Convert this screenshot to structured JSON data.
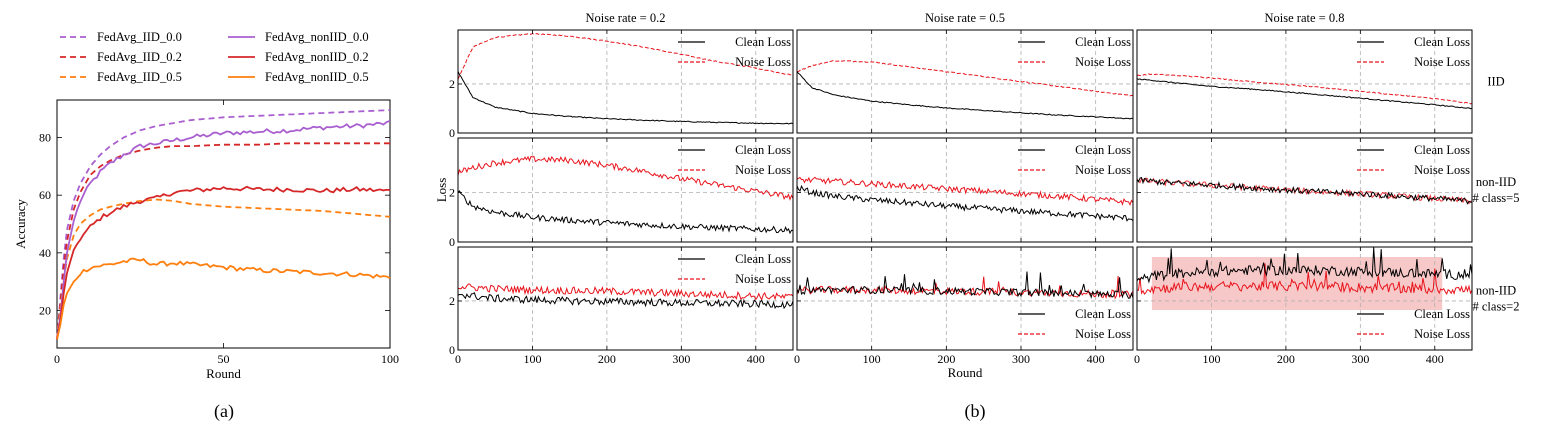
{
  "captions": {
    "a": "(a)",
    "b": "(b)"
  },
  "chart_data": [
    {
      "id": "a",
      "type": "line",
      "xlabel": "Round",
      "ylabel": "Accuracy",
      "xlim": [
        0,
        100
      ],
      "ylim": [
        7,
        93
      ],
      "xticks": [
        0,
        50,
        100
      ],
      "yticks": [
        20,
        40,
        60,
        80
      ],
      "legend_position": "top",
      "series": [
        {
          "name": "FedAvg_IID_0.0",
          "color": "#a95fcf",
          "style": "dashed",
          "x": [
            0,
            1,
            2,
            3,
            5,
            7,
            10,
            13,
            16,
            20,
            25,
            30,
            35,
            40,
            50,
            60,
            70,
            80,
            90,
            100
          ],
          "y": [
            10,
            24,
            38,
            48,
            58,
            64,
            70,
            74,
            77,
            80,
            82.5,
            84,
            85,
            86,
            87,
            87.5,
            88,
            88.5,
            89,
            89.5
          ]
        },
        {
          "name": "FedAvg_IID_0.2",
          "color": "#d62728",
          "style": "dashed",
          "x": [
            0,
            1,
            2,
            3,
            5,
            7,
            10,
            13,
            16,
            20,
            25,
            30,
            35,
            40,
            50,
            60,
            70,
            80,
            90,
            100
          ],
          "y": [
            10,
            22,
            35,
            44,
            55,
            61,
            67,
            70,
            72,
            74,
            75.5,
            76.5,
            77,
            77,
            77.5,
            77.5,
            78,
            78,
            78,
            78
          ]
        },
        {
          "name": "FedAvg_IID_0.5",
          "color": "#ff7f0e",
          "style": "dashed",
          "x": [
            0,
            1,
            2,
            3,
            5,
            7,
            10,
            13,
            16,
            20,
            25,
            30,
            35,
            40,
            50,
            60,
            70,
            80,
            90,
            100
          ],
          "y": [
            10,
            20,
            30,
            38,
            46,
            50,
            53,
            55,
            56,
            57,
            58,
            58.5,
            58,
            57,
            56,
            55.5,
            55,
            54.5,
            53.5,
            52.5
          ]
        },
        {
          "name": "FedAvg_nonIID_0.0",
          "color": "#a95fcf",
          "style": "solid",
          "x": [
            0,
            1,
            2,
            3,
            5,
            7,
            10,
            13,
            16,
            20,
            25,
            30,
            35,
            40,
            50,
            60,
            70,
            80,
            90,
            100
          ],
          "y": [
            10,
            18,
            30,
            40,
            51,
            58,
            64,
            68,
            71,
            74,
            77,
            78,
            79,
            80,
            81.5,
            82,
            82.5,
            83.5,
            84,
            85
          ]
        },
        {
          "name": "FedAvg_nonIID_0.2",
          "color": "#d62728",
          "style": "solid",
          "x": [
            0,
            1,
            2,
            3,
            5,
            7,
            10,
            13,
            16,
            20,
            25,
            30,
            35,
            40,
            50,
            60,
            70,
            80,
            90,
            100
          ],
          "y": [
            10,
            16,
            26,
            33,
            41,
            45,
            49,
            52,
            54,
            56,
            58,
            59,
            61,
            61.5,
            62.5,
            62,
            62,
            61.5,
            62,
            61.5
          ]
        },
        {
          "name": "FedAvg_nonIID_0.5",
          "color": "#ff7f0e",
          "style": "solid",
          "x": [
            0,
            1,
            2,
            3,
            5,
            7,
            10,
            13,
            16,
            20,
            25,
            30,
            35,
            40,
            50,
            60,
            70,
            80,
            90,
            100
          ],
          "y": [
            10,
            15,
            22,
            26,
            30,
            33,
            35,
            35.5,
            36,
            37,
            37.5,
            36,
            36.5,
            36,
            35,
            34,
            33.5,
            33,
            32.5,
            31.5
          ]
        }
      ]
    },
    {
      "id": "b",
      "type": "line",
      "xlabel": "Round",
      "ylabel": "Loss",
      "xlim": [
        0,
        450
      ],
      "ylim": [
        0,
        4.2
      ],
      "xticks": [
        0,
        100,
        200,
        300,
        400
      ],
      "yticks": [
        0,
        2
      ],
      "columns": [
        "Noise rate = 0.2",
        "Noise rate = 0.5",
        "Noise rate = 0.8"
      ],
      "rows": [
        [
          "IID"
        ],
        [
          "non-IID",
          "# class=5"
        ],
        [
          "non-IID",
          "# class=2"
        ]
      ],
      "series_names": [
        "Clean Loss",
        "Noise Loss"
      ],
      "series_colors": [
        "#000000",
        "#e8141c"
      ],
      "x": [
        0,
        20,
        50,
        100,
        150,
        200,
        250,
        300,
        350,
        400,
        450
      ],
      "panels": [
        {
          "row": 0,
          "col": 0,
          "legend_position": "upper right",
          "clean": [
            2.5,
            1.45,
            1.05,
            0.8,
            0.67,
            0.58,
            0.52,
            0.47,
            0.43,
            0.4,
            0.38
          ],
          "noise": [
            2.2,
            3.5,
            3.9,
            4.05,
            3.95,
            3.75,
            3.5,
            3.2,
            2.9,
            2.65,
            2.35
          ]
        },
        {
          "row": 0,
          "col": 1,
          "legend_position": "upper right",
          "clean": [
            2.5,
            1.85,
            1.55,
            1.3,
            1.15,
            1.02,
            0.92,
            0.82,
            0.73,
            0.66,
            0.58
          ],
          "noise": [
            2.5,
            2.75,
            2.95,
            2.9,
            2.7,
            2.5,
            2.3,
            2.1,
            1.9,
            1.7,
            1.52
          ]
        },
        {
          "row": 0,
          "col": 2,
          "legend_position": "upper right",
          "clean": [
            2.2,
            2.15,
            2.05,
            1.9,
            1.8,
            1.68,
            1.55,
            1.42,
            1.28,
            1.15,
            1.0
          ],
          "noise": [
            2.35,
            2.4,
            2.35,
            2.25,
            2.1,
            1.98,
            1.85,
            1.7,
            1.55,
            1.4,
            1.2
          ]
        },
        {
          "row": 1,
          "col": 0,
          "legend_position": "upper right",
          "jitter": 0.12,
          "clean": [
            2.0,
            1.45,
            1.2,
            1.0,
            0.88,
            0.78,
            0.7,
            0.63,
            0.57,
            0.52,
            0.48
          ],
          "noise": [
            2.8,
            3.0,
            3.2,
            3.35,
            3.3,
            3.1,
            2.85,
            2.55,
            2.3,
            2.05,
            1.8
          ]
        },
        {
          "row": 1,
          "col": 1,
          "legend_position": "upper right",
          "jitter": 0.12,
          "clean": [
            2.2,
            2.0,
            1.85,
            1.7,
            1.58,
            1.45,
            1.35,
            1.25,
            1.15,
            1.05,
            0.95
          ],
          "noise": [
            2.5,
            2.5,
            2.45,
            2.35,
            2.25,
            2.15,
            2.05,
            1.95,
            1.85,
            1.72,
            1.6
          ]
        },
        {
          "row": 1,
          "col": 2,
          "legend_position": "upper right",
          "jitter": 0.12,
          "clean": [
            2.5,
            2.45,
            2.38,
            2.3,
            2.2,
            2.1,
            2.02,
            1.95,
            1.85,
            1.75,
            1.65
          ],
          "noise": [
            2.5,
            2.45,
            2.38,
            2.3,
            2.2,
            2.1,
            2.02,
            1.95,
            1.85,
            1.75,
            1.65
          ]
        },
        {
          "row": 2,
          "col": 0,
          "legend_position": "upper right",
          "jitter": 0.15,
          "clean": [
            2.3,
            2.2,
            2.1,
            2.05,
            2.0,
            1.98,
            1.95,
            1.92,
            1.9,
            1.88,
            1.85
          ],
          "noise": [
            2.6,
            2.55,
            2.5,
            2.45,
            2.42,
            2.4,
            2.35,
            2.3,
            2.25,
            2.2,
            2.15
          ]
        },
        {
          "row": 2,
          "col": 1,
          "legend_position": "lower right",
          "jitter": 0.15,
          "spikes": true,
          "clean": [
            2.4,
            2.45,
            2.45,
            2.45,
            2.42,
            2.4,
            2.38,
            2.35,
            2.32,
            2.28,
            2.25
          ],
          "noise": [
            2.4,
            2.45,
            2.45,
            2.45,
            2.42,
            2.4,
            2.38,
            2.35,
            2.32,
            2.28,
            2.25
          ]
        },
        {
          "row": 2,
          "col": 2,
          "legend_position": "lower right",
          "jitter": 0.2,
          "spikes": true,
          "highlight": [
            20,
            410
          ],
          "clean": [
            2.8,
            3.0,
            3.1,
            3.2,
            3.25,
            3.25,
            3.25,
            3.2,
            3.15,
            3.1,
            3.05
          ],
          "noise": [
            2.4,
            2.5,
            2.55,
            2.6,
            2.6,
            2.6,
            2.6,
            2.55,
            2.5,
            2.48,
            2.45
          ]
        }
      ]
    }
  ]
}
